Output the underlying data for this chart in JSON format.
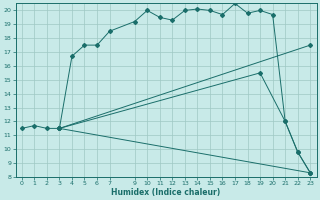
{
  "title": "",
  "xlabel": "Humidex (Indice chaleur)",
  "bg_color": "#c8eae8",
  "grid_color": "#9fc8c4",
  "line_color": "#1a6e6a",
  "xlim": [
    -0.5,
    23.5
  ],
  "ylim": [
    8,
    20.5
  ],
  "xtick_positions": [
    0,
    1,
    2,
    3,
    4,
    5,
    6,
    7,
    9,
    10,
    11,
    12,
    13,
    14,
    15,
    16,
    17,
    18,
    19,
    20,
    21,
    22,
    23
  ],
  "xtick_labels": [
    "0",
    "1",
    "2",
    "3",
    "4",
    "5",
    "6",
    "7",
    "9",
    "10",
    "11",
    "12",
    "13",
    "14",
    "15",
    "16",
    "17",
    "18",
    "19",
    "20",
    "21",
    "22",
    "23"
  ],
  "ytick_positions": [
    8,
    9,
    10,
    11,
    12,
    13,
    14,
    15,
    16,
    17,
    18,
    19,
    20
  ],
  "ytick_labels": [
    "8",
    "9",
    "10",
    "11",
    "12",
    "13",
    "14",
    "15",
    "16",
    "17",
    "18",
    "19",
    "20"
  ],
  "line1_x": [
    0,
    1,
    2,
    3,
    4,
    5,
    6,
    7,
    9,
    10,
    11,
    12,
    13,
    14,
    15,
    16,
    17,
    18,
    19,
    20,
    21,
    22,
    23
  ],
  "line1_y": [
    11.5,
    11.7,
    11.5,
    11.5,
    16.7,
    17.5,
    17.5,
    18.5,
    19.2,
    20.0,
    19.5,
    19.3,
    20.0,
    20.1,
    20.0,
    19.7,
    20.5,
    19.8,
    20.0,
    19.7,
    12.0,
    9.8,
    8.3
  ],
  "line2_x": [
    3,
    23
  ],
  "line2_y": [
    11.5,
    17.5
  ],
  "line3_x": [
    3,
    19,
    21,
    22,
    23
  ],
  "line3_y": [
    11.5,
    15.5,
    12.0,
    9.8,
    8.3
  ],
  "line4_x": [
    3,
    23
  ],
  "line4_y": [
    11.5,
    8.3
  ]
}
